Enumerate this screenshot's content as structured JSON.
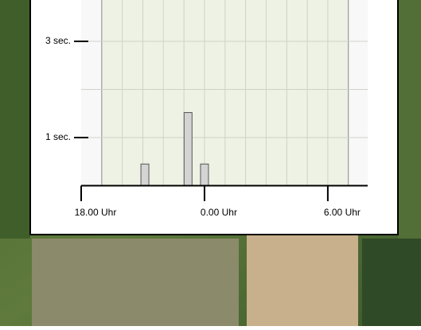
{
  "chart_data": {
    "type": "bar",
    "x": [
      21.1,
      23.2,
      24.0
    ],
    "values": [
      0.45,
      1.52,
      0.45
    ],
    "color": "#d4d4d4",
    "xlim": [
      18,
      31.94
    ],
    "ylim": [
      0,
      3.86
    ],
    "xticks": [
      {
        "value": 18,
        "label": "18.00 Uhr"
      },
      {
        "value": 24,
        "label": "0.00 Uhr"
      },
      {
        "value": 30,
        "label": "6.00 Uhr"
      }
    ],
    "yticks": [
      {
        "value": 1,
        "label": "1 sec."
      },
      {
        "value": 3,
        "label": "3 sec."
      }
    ],
    "highlight": [
      19,
      31
    ],
    "grid": true
  }
}
